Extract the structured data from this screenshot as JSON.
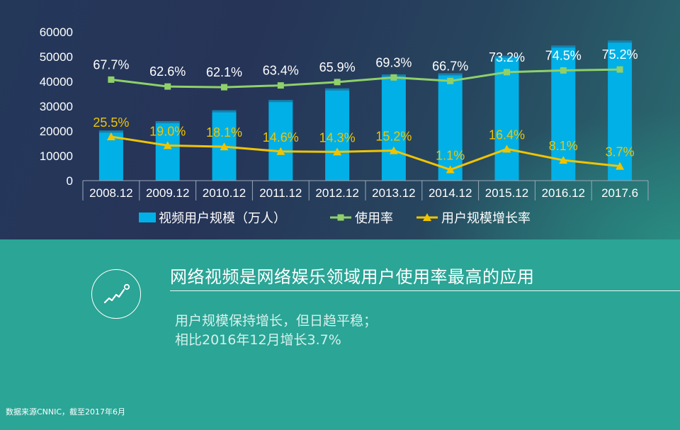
{
  "chart_data": {
    "type": "bar",
    "categories": [
      "2008.12",
      "2009.12",
      "2010.12",
      "2011.12",
      "2012.12",
      "2013.12",
      "2014.12",
      "2015.12",
      "2016.12",
      "2017.6"
    ],
    "ylim": [
      0,
      60000
    ],
    "yticks": [
      0,
      10000,
      20000,
      30000,
      40000,
      50000,
      60000
    ],
    "grid": false,
    "legend_position": "bottom",
    "colors": {
      "bars": "#00b0e6",
      "usage_rate": "#8fd06a",
      "growth_rate": "#f0c400",
      "bar_top": "#2a5a7a"
    },
    "series": [
      {
        "name": "视频用户规模（万人）",
        "kind": "bar",
        "values": [
          20200,
          24000,
          28400,
          32500,
          37200,
          42800,
          43300,
          50400,
          54500,
          56500
        ]
      },
      {
        "name": "使用率",
        "kind": "line",
        "marker": "square",
        "values": [
          67.7,
          62.6,
          62.1,
          63.4,
          65.9,
          69.3,
          66.7,
          73.2,
          74.5,
          75.2
        ],
        "labels": [
          "67.7%",
          "62.6%",
          "62.1%",
          "63.4%",
          "65.9%",
          "69.3%",
          "66.7%",
          "73.2%",
          "74.5%",
          "75.2%"
        ]
      },
      {
        "name": "用户规模增长率",
        "kind": "line",
        "marker": "triangle",
        "values": [
          25.5,
          19.0,
          18.1,
          14.6,
          14.3,
          15.2,
          1.1,
          16.4,
          8.1,
          3.7
        ],
        "labels": [
          "25.5%",
          "19.0%",
          "18.1%",
          "14.6%",
          "14.3%",
          "15.2%",
          "1.1%",
          "16.4%",
          "8.1%",
          "3.7%"
        ]
      }
    ]
  },
  "info": {
    "headline": "网络视频是网络娱乐领域用户使用率最高的应用",
    "summary_lines": [
      "用户规模保持增长，但日趋平稳；",
      "相比2016年12月增长3.7%"
    ],
    "icon": "trend-line-icon",
    "source": "数据来源CNNIC，截至2017年6月"
  }
}
